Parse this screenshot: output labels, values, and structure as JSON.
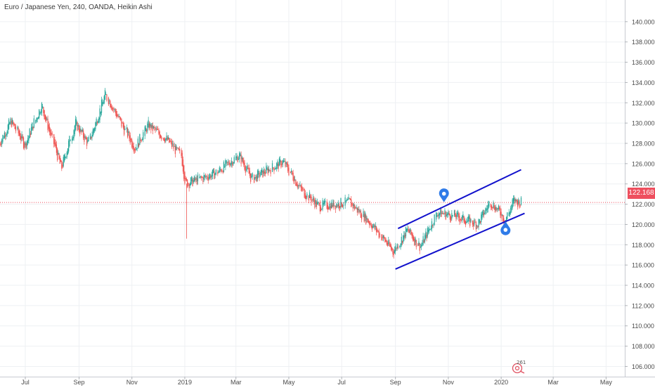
{
  "symbol_title": "Euro / Japanese Yen, 240, OANDA, Heikin Ashi",
  "last_price_label": "122.168",
  "watermark_text": "261",
  "colors": {
    "up": "#26a69a",
    "down": "#ef5350",
    "price_line": "#ee4f5e",
    "trendline": "#1111cc",
    "marker": "#2f7be8",
    "grid": "#eef0f3",
    "axis_text": "#4a4a4a"
  },
  "chart_data": {
    "type": "candlestick",
    "title": "Euro / Japanese Yen, 240, OANDA, Heikin Ashi",
    "ylim": [
      104.5,
      141.5
    ],
    "y_ticks": [
      "106.000",
      "108.000",
      "110.000",
      "112.000",
      "114.000",
      "116.000",
      "118.000",
      "120.000",
      "122.000",
      "124.000",
      "126.000",
      "128.000",
      "130.000",
      "132.000",
      "134.000",
      "136.000",
      "138.000",
      "140.000"
    ],
    "x_ticks": [
      "Jul",
      "Sep",
      "Nov",
      "2019",
      "Mar",
      "May",
      "Jul",
      "Sep",
      "Nov",
      "2020",
      "Mar",
      "May"
    ],
    "last_price": 122.168,
    "price_path": [
      {
        "date": "2018-06-01",
        "price": 128.0
      },
      {
        "date": "2018-06-15",
        "price": 130.2
      },
      {
        "date": "2018-07-01",
        "price": 127.8
      },
      {
        "date": "2018-07-20",
        "price": 131.8
      },
      {
        "date": "2018-08-03",
        "price": 128.0
      },
      {
        "date": "2018-08-12",
        "price": 125.5
      },
      {
        "date": "2018-08-28",
        "price": 130.0
      },
      {
        "date": "2018-09-12",
        "price": 128.0
      },
      {
        "date": "2018-10-02",
        "price": 132.8
      },
      {
        "date": "2018-10-20",
        "price": 130.0
      },
      {
        "date": "2018-11-05",
        "price": 127.5
      },
      {
        "date": "2018-11-20",
        "price": 129.8
      },
      {
        "date": "2018-12-10",
        "price": 128.5
      },
      {
        "date": "2018-12-28",
        "price": 126.8
      },
      {
        "date": "2019-01-02",
        "price": 124.0
      },
      {
        "date": "2019-01-12",
        "price": 124.3
      },
      {
        "date": "2019-02-05",
        "price": 125.0
      },
      {
        "date": "2019-03-05",
        "price": 126.8
      },
      {
        "date": "2019-03-20",
        "price": 124.5
      },
      {
        "date": "2019-04-10",
        "price": 125.5
      },
      {
        "date": "2019-04-25",
        "price": 126.2
      },
      {
        "date": "2019-05-15",
        "price": 123.5
      },
      {
        "date": "2019-06-05",
        "price": 121.8
      },
      {
        "date": "2019-06-25",
        "price": 122.0
      },
      {
        "date": "2019-07-10",
        "price": 122.2
      },
      {
        "date": "2019-07-25",
        "price": 121.0
      },
      {
        "date": "2019-08-10",
        "price": 119.5
      },
      {
        "date": "2019-08-30",
        "price": 117.3
      },
      {
        "date": "2019-09-15",
        "price": 119.5
      },
      {
        "date": "2019-09-30",
        "price": 117.8
      },
      {
        "date": "2019-10-20",
        "price": 121.2
      },
      {
        "date": "2019-11-10",
        "price": 120.8
      },
      {
        "date": "2019-12-05",
        "price": 120.0
      },
      {
        "date": "2019-12-20",
        "price": 122.2
      },
      {
        "date": "2020-01-02",
        "price": 121.0
      },
      {
        "date": "2020-01-06",
        "price": 120.3
      },
      {
        "date": "2020-01-15",
        "price": 122.3
      },
      {
        "date": "2020-01-25",
        "price": 122.168
      }
    ],
    "spikes": [
      {
        "date": "2019-01-03",
        "low": 118.6
      }
    ],
    "trendlines": [
      {
        "from": {
          "date": "2019-09-01",
          "price": 115.6
        },
        "to": {
          "date": "2020-01-28",
          "price": 121.1
        }
      },
      {
        "from": {
          "date": "2019-09-04",
          "price": 119.6
        },
        "to": {
          "date": "2020-01-24",
          "price": 125.4
        }
      }
    ],
    "markers": [
      {
        "date": "2019-10-27",
        "price": 122.2,
        "pointing": "down"
      },
      {
        "date": "2020-01-06",
        "price": 120.3,
        "pointing": "up"
      }
    ]
  }
}
